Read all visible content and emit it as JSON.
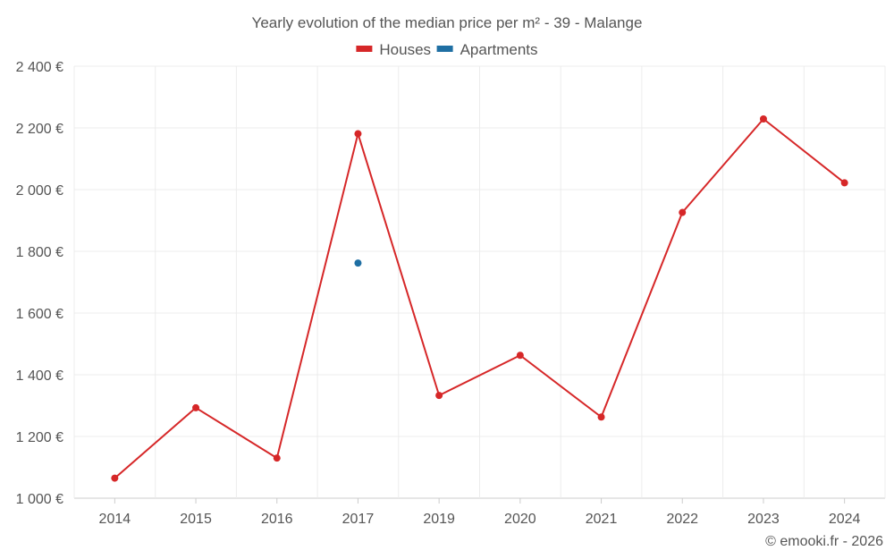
{
  "chart_data": {
    "type": "line",
    "title": "Yearly evolution of the median price per m² - 39 - Malange",
    "categories": [
      "2014",
      "2015",
      "2016",
      "2017",
      "2019",
      "2020",
      "2021",
      "2022",
      "2023",
      "2024"
    ],
    "series": [
      {
        "name": "Houses",
        "color": "#d62728",
        "values": [
          1065,
          1293,
          1130,
          2181,
          1333,
          1463,
          1263,
          1926,
          2229,
          2022
        ]
      },
      {
        "name": "Apartments",
        "color": "#1f6fa3",
        "values": [
          null,
          null,
          null,
          1762,
          null,
          null,
          null,
          null,
          null,
          null
        ]
      }
    ],
    "yticks": [
      1000,
      1200,
      1400,
      1600,
      1800,
      2000,
      2200,
      2400
    ],
    "ytick_labels": [
      "1 000 €",
      "1 200 €",
      "1 400 €",
      "1 600 €",
      "1 800 €",
      "2 000 €",
      "2 200 €",
      "2 400 €"
    ],
    "ylim": [
      1000,
      2400
    ],
    "grid": true,
    "legend_position": "top-center",
    "xlabel": "",
    "ylabel": "",
    "credit": "© emooki.fr - 2026"
  }
}
